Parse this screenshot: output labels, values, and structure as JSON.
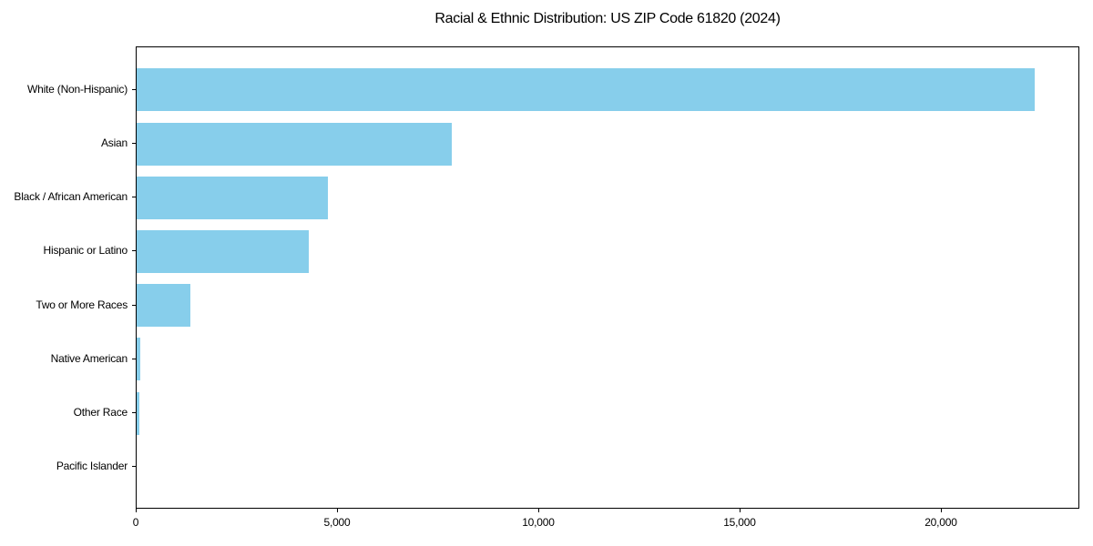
{
  "figure": {
    "title": "Racial & Ethnic Distribution: US ZIP Code 61820 (2024)"
  },
  "colors": {
    "bar": "#87CEEB",
    "axis": "#000000",
    "background": "#FFFFFF",
    "text": "#000000"
  },
  "chart_data": {
    "type": "bar",
    "orientation": "horizontal",
    "title": "Racial & Ethnic Distribution: US ZIP Code 61820 (2024)",
    "categories": [
      "White (Non-Hispanic)",
      "Asian",
      "Black / African American",
      "Hispanic or Latino",
      "Two or More Races",
      "Native American",
      "Other Race",
      "Pacific Islander"
    ],
    "values": [
      22345,
      7835,
      4760,
      4275,
      1340,
      90,
      65,
      0
    ],
    "xlabel": "",
    "ylabel": "",
    "xlim": [
      0,
      23440
    ],
    "xticks": {
      "values": [
        0,
        5000,
        10000,
        15000,
        20000
      ],
      "labels": [
        "0",
        "5,000",
        "10,000",
        "15,000",
        "20,000"
      ]
    },
    "grid": false,
    "legend_position": "none",
    "bar_color": "#87CEEB"
  }
}
